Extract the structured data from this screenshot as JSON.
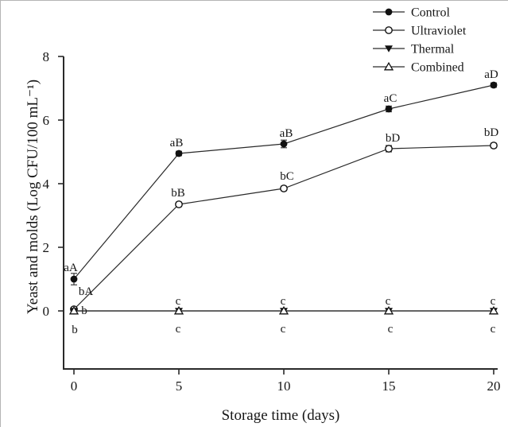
{
  "figure": {
    "background": "#ffffff",
    "border_color": "#b5b5b5",
    "line_color": "#2a2a2a",
    "marker_fill": "#111111",
    "marker_open_fill": "#ffffff"
  },
  "chart_data": {
    "type": "line",
    "title": "",
    "xlabel": "Storage time (days)",
    "ylabel": "Yeast and molds (Log CFU/100 mL⁻¹)",
    "x": [
      0,
      5,
      10,
      15,
      20
    ],
    "x_tick_labels": [
      "0",
      "5",
      "10",
      "15",
      "20"
    ],
    "y_ticks": [
      0,
      2,
      4,
      6,
      8
    ],
    "y_tick_labels": [
      "0",
      "2",
      "4",
      "6",
      "8"
    ],
    "xlim": [
      -0.65,
      20.2
    ],
    "ylim": [
      -1.83,
      8.05
    ],
    "grid": false,
    "legend_position": "top-right",
    "legend_entries": [
      "Control",
      "Ultraviolet",
      "Thermal",
      "Combined"
    ],
    "series": [
      {
        "name": "Control",
        "marker": "filled-circle",
        "values": [
          1.0,
          4.95,
          5.25,
          6.35,
          7.1
        ],
        "errors": [
          0.18,
          0.07,
          0.12,
          0.09,
          0.07
        ],
        "point_labels": [
          {
            "text": "aA",
            "dx": -4,
            "dy": -10
          },
          {
            "text": "aB",
            "dx": -3,
            "dy": -9
          },
          {
            "text": "aB",
            "dx": 3,
            "dy": -9
          },
          {
            "text": "aC",
            "dx": 2,
            "dy": -9
          },
          {
            "text": "aD",
            "dx": -3,
            "dy": -9
          }
        ]
      },
      {
        "name": "Ultraviolet",
        "marker": "open-circle",
        "values": [
          0.05,
          3.35,
          3.85,
          5.1,
          5.2
        ],
        "errors": [
          0,
          0.07,
          0.07,
          0.1,
          0.07
        ],
        "point_labels": [
          {
            "text": "bA",
            "dx": 15,
            "dy": -18
          },
          {
            "text": "bB",
            "dx": -1,
            "dy": -10
          },
          {
            "text": "bC",
            "dx": 4,
            "dy": -11
          },
          {
            "text": "bD",
            "dx": 5,
            "dy": -9
          },
          {
            "text": "bD",
            "dx": -3,
            "dy": -12
          }
        ]
      },
      {
        "name": "Thermal",
        "marker": "filled-triangle-down",
        "values": [
          0,
          0,
          0,
          0,
          0
        ],
        "errors": [
          0,
          0,
          0,
          0,
          0
        ],
        "point_labels": [
          {
            "text": "b",
            "dx": 13,
            "dy": 4
          },
          {
            "text": "c",
            "dx": -1,
            "dy": -8
          },
          {
            "text": "c",
            "dx": -1,
            "dy": -8
          },
          {
            "text": "c",
            "dx": -1,
            "dy": -8
          },
          {
            "text": "c",
            "dx": -1,
            "dy": -8
          }
        ]
      },
      {
        "name": "Combined",
        "marker": "open-triangle-up",
        "values": [
          0,
          0,
          0,
          0,
          0
        ],
        "errors": [
          0,
          0,
          0,
          0,
          0
        ],
        "point_labels": [
          {
            "text": "b",
            "dx": 1,
            "dy": 28
          },
          {
            "text": "c",
            "dx": -1,
            "dy": 27
          },
          {
            "text": "c",
            "dx": -1,
            "dy": 27
          },
          {
            "text": "c",
            "dx": 2,
            "dy": 27
          },
          {
            "text": "c",
            "dx": -1,
            "dy": 27
          }
        ]
      }
    ]
  }
}
